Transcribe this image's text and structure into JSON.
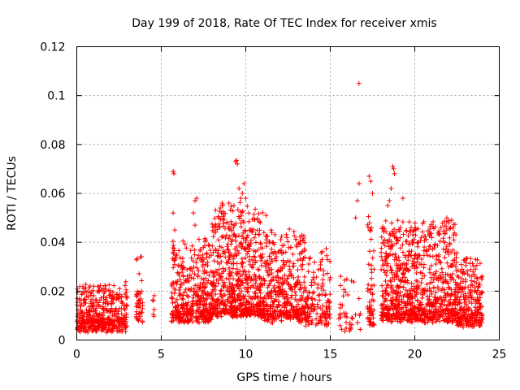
{
  "chart_data": {
    "type": "scatter",
    "title": "Day 199 of 2018, Rate Of TEC Index for receiver xmis",
    "xlabel": "GPS time / hours",
    "ylabel": "ROTI / TECUs",
    "xlim": [
      0,
      25
    ],
    "ylim": [
      0,
      0.12
    ],
    "xticks": [
      0,
      5,
      10,
      15,
      20,
      25
    ],
    "yticks": [
      0,
      0.02,
      0.04,
      0.06,
      0.08,
      0.1,
      0.12
    ],
    "xtick_labels": [
      "0",
      "5",
      "10",
      "15",
      "20",
      "25"
    ],
    "ytick_labels": [
      "0",
      "0.02",
      "0.04",
      "0.06",
      "0.08",
      "0.1",
      "0.12"
    ],
    "grid": true,
    "marker": "plus",
    "color": "#ff0000",
    "series": [
      {
        "name": "ROTI",
        "segments": [
          {
            "x_range": [
              0.0,
              3.0
            ],
            "base": 0.01,
            "spread": 0.008,
            "count": 420
          },
          {
            "x_range": [
              3.5,
              3.9
            ],
            "base": 0.014,
            "spread": 0.012,
            "count": 40
          },
          {
            "x_range": [
              4.5,
              4.6
            ],
            "base": 0.016,
            "spread": 0.004,
            "count": 6
          },
          {
            "x_range": [
              5.6,
              8.0
            ],
            "base": 0.014,
            "spread": 0.014,
            "count": 420
          },
          {
            "x_range": [
              8.0,
              11.0
            ],
            "base": 0.016,
            "spread": 0.02,
            "count": 650
          },
          {
            "x_range": [
              11.0,
              13.5
            ],
            "base": 0.014,
            "spread": 0.016,
            "count": 420
          },
          {
            "x_range": [
              13.5,
              15.0
            ],
            "base": 0.012,
            "spread": 0.014,
            "count": 150
          },
          {
            "x_range": [
              15.5,
              16.8
            ],
            "base": 0.01,
            "spread": 0.01,
            "count": 40
          },
          {
            "x_range": [
              17.2,
              17.6
            ],
            "base": 0.012,
            "spread": 0.02,
            "count": 60
          },
          {
            "x_range": [
              18.0,
              22.5
            ],
            "base": 0.014,
            "spread": 0.018,
            "count": 900
          },
          {
            "x_range": [
              22.5,
              24.0
            ],
            "base": 0.012,
            "spread": 0.012,
            "count": 260
          }
        ],
        "highlights": [
          {
            "x": 5.7,
            "y": 0.069
          },
          {
            "x": 5.75,
            "y": 0.068
          },
          {
            "x": 5.7,
            "y": 0.052
          },
          {
            "x": 5.8,
            "y": 0.045
          },
          {
            "x": 7.0,
            "y": 0.057
          },
          {
            "x": 7.1,
            "y": 0.058
          },
          {
            "x": 6.9,
            "y": 0.052
          },
          {
            "x": 7.0,
            "y": 0.047
          },
          {
            "x": 8.6,
            "y": 0.056
          },
          {
            "x": 9.0,
            "y": 0.056
          },
          {
            "x": 9.4,
            "y": 0.073
          },
          {
            "x": 9.5,
            "y": 0.072
          },
          {
            "x": 9.45,
            "y": 0.0735
          },
          {
            "x": 9.6,
            "y": 0.062
          },
          {
            "x": 9.8,
            "y": 0.06
          },
          {
            "x": 9.9,
            "y": 0.064
          },
          {
            "x": 9.7,
            "y": 0.058
          },
          {
            "x": 9.3,
            "y": 0.055
          },
          {
            "x": 10.0,
            "y": 0.058
          },
          {
            "x": 11.2,
            "y": 0.051
          },
          {
            "x": 11.5,
            "y": 0.045
          },
          {
            "x": 16.7,
            "y": 0.105
          },
          {
            "x": 16.7,
            "y": 0.064
          },
          {
            "x": 16.6,
            "y": 0.057
          },
          {
            "x": 16.5,
            "y": 0.05
          },
          {
            "x": 17.3,
            "y": 0.067
          },
          {
            "x": 17.4,
            "y": 0.065
          },
          {
            "x": 17.5,
            "y": 0.06
          },
          {
            "x": 18.7,
            "y": 0.071
          },
          {
            "x": 18.75,
            "y": 0.07
          },
          {
            "x": 18.8,
            "y": 0.068
          },
          {
            "x": 18.6,
            "y": 0.062
          },
          {
            "x": 18.5,
            "y": 0.057
          },
          {
            "x": 18.4,
            "y": 0.055
          },
          {
            "x": 19.3,
            "y": 0.058
          },
          {
            "x": 19.0,
            "y": 0.049
          },
          {
            "x": 21.9,
            "y": 0.05
          },
          {
            "x": 22.0,
            "y": 0.048
          },
          {
            "x": 23.6,
            "y": 0.033
          }
        ]
      }
    ]
  }
}
